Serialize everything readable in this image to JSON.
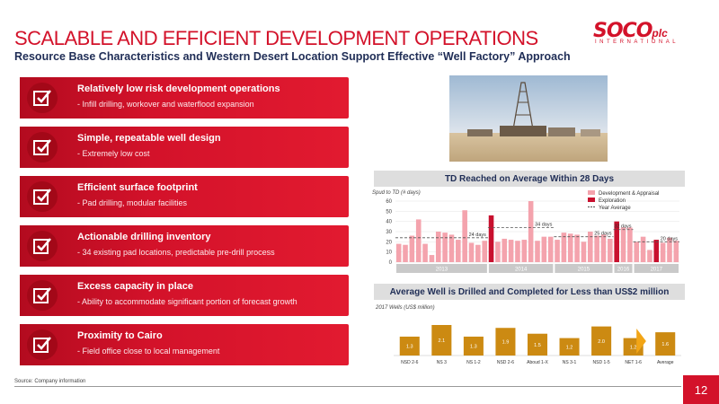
{
  "header": {
    "title": "SCALABLE AND EFFICIENT DEVELOPMENT OPERATIONS",
    "subtitle": "Resource Base Characteristics and Western Desert Location Support Effective “Well Factory” Approach"
  },
  "logo": {
    "main": "SOCO",
    "plc": "plc",
    "intl": "INTERNATIONAL"
  },
  "items": [
    {
      "title": "Relatively low risk development operations",
      "desc": "-  Infill drilling, workover and waterflood expansion"
    },
    {
      "title": "Simple, repeatable well design",
      "desc": "-  Extremely low cost"
    },
    {
      "title": "Efficient surface footprint",
      "desc": "-  Pad drilling, modular facilities"
    },
    {
      "title": "Actionable drilling inventory",
      "desc": "-  34 existing pad locations, predictable pre-drill process"
    },
    {
      "title": "Excess capacity in place",
      "desc": "-  Ability to accommodate significant portion of forecast growth"
    },
    {
      "title": "Proximity to Cairo",
      "desc": "-  Field office close to local management"
    }
  ],
  "footer": {
    "source": "Source: Company information",
    "page": "12"
  },
  "colors": {
    "brand_red": "#d3122a",
    "navy": "#1f2d56",
    "dev_pink": "#f4a3ad",
    "expl_red": "#c8102e",
    "gold": "#cc8a12"
  },
  "chart_data": [
    {
      "type": "bar",
      "title": "TD Reached on Average Within 28 Days",
      "ylabel": "Spud to TD (# days)",
      "ylim": [
        0,
        60
      ],
      "yticks": [
        0,
        10,
        20,
        30,
        40,
        50,
        60
      ],
      "legend": [
        "Development & Appraisal",
        "Exploration",
        "Year Average"
      ],
      "legend_position": "top-right",
      "groups": [
        {
          "label": "2013",
          "values": [
            18,
            17,
            26,
            42,
            18,
            7,
            30,
            29,
            27,
            22,
            51,
            19,
            17,
            21
          ],
          "exploration": [],
          "average": 24,
          "avg_label": "24 days"
        },
        {
          "label": "2014",
          "values": [
            46,
            20,
            23,
            22,
            21,
            22,
            60,
            21,
            25,
            25
          ],
          "exploration": [
            0
          ],
          "average": 34,
          "avg_label": "34 days"
        },
        {
          "label": "2015",
          "values": [
            22,
            29,
            28,
            27,
            20,
            30,
            26,
            27,
            23
          ],
          "exploration": [],
          "average": 25,
          "avg_label": "25 days"
        },
        {
          "label": "2016",
          "values": [
            40,
            34,
            34
          ],
          "exploration": [
            0
          ],
          "average": 32,
          "avg_label": "32 days"
        },
        {
          "label": "2017",
          "values": [
            20,
            25,
            12,
            22,
            19,
            24,
            21
          ],
          "exploration": [
            3
          ],
          "average": 20,
          "avg_label": "20 days"
        }
      ]
    },
    {
      "type": "bar",
      "title": "Average Well is Drilled and Completed for Less than US$2 million",
      "ylabel": "2017 Wells (US$ million)",
      "categories": [
        "NSD 2-6",
        "NS 3",
        "NS 1-2",
        "NSD 2-6",
        "Aboud 1-X",
        "NS 3-1",
        "NSD 1-5",
        "NET 1-6",
        "Average"
      ],
      "values": [
        1.3,
        2.1,
        1.3,
        1.9,
        1.5,
        1.2,
        2.0,
        1.2,
        1.6
      ],
      "value_labels": [
        "1.3",
        "2.1",
        "1.3",
        "1.9",
        "1.5",
        "1.2",
        "2.0",
        "1.2",
        "1.6"
      ]
    }
  ]
}
